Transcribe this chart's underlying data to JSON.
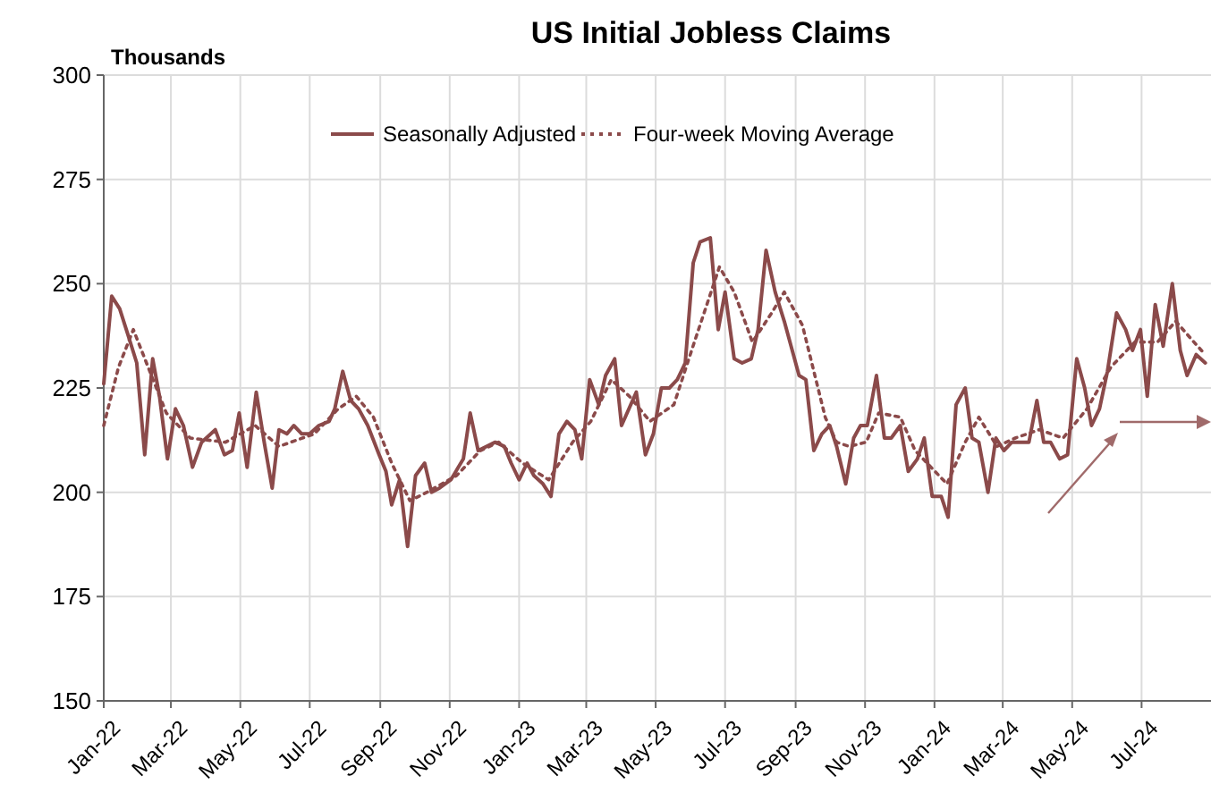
{
  "chart_data": {
    "type": "line",
    "title": "US Initial Jobless Claims",
    "ylabel": "Thousands",
    "legend": "top",
    "grid": true,
    "xlim": [
      "2022-01-01",
      "2024-08-31"
    ],
    "xticks": [
      {
        "value": "2022-01-01",
        "label": "Jan-22"
      },
      {
        "value": "2022-03-01",
        "label": "Mar-22"
      },
      {
        "value": "2022-05-01",
        "label": "May-22"
      },
      {
        "value": "2022-07-01",
        "label": "Jul-22"
      },
      {
        "value": "2022-09-01",
        "label": "Sep-22"
      },
      {
        "value": "2022-11-01",
        "label": "Nov-22"
      },
      {
        "value": "2023-01-01",
        "label": "Jan-23"
      },
      {
        "value": "2023-03-01",
        "label": "Mar-23"
      },
      {
        "value": "2023-05-01",
        "label": "May-23"
      },
      {
        "value": "2023-07-01",
        "label": "Jul-23"
      },
      {
        "value": "2023-09-01",
        "label": "Sep-23"
      },
      {
        "value": "2023-11-01",
        "label": "Nov-23"
      },
      {
        "value": "2024-01-01",
        "label": "Jan-24"
      },
      {
        "value": "2024-03-01",
        "label": "Mar-24"
      },
      {
        "value": "2024-05-01",
        "label": "May-24"
      },
      {
        "value": "2024-07-01",
        "label": "Jul-24"
      }
    ],
    "ylim": [
      150,
      300
    ],
    "yticks": [
      150,
      175,
      200,
      225,
      250,
      275,
      300
    ],
    "series": [
      {
        "name": "Seasonally Adjusted",
        "color": "#8b4a4a",
        "line_style": "solid",
        "x": [
          "2022-01-01",
          "2022-01-08",
          "2022-01-15",
          "2022-01-22",
          "2022-01-30",
          "2022-02-06",
          "2022-02-13",
          "2022-02-19",
          "2022-02-26",
          "2022-03-05",
          "2022-03-12",
          "2022-03-20",
          "2022-03-28",
          "2022-04-09",
          "2022-04-17",
          "2022-04-24",
          "2022-04-30",
          "2022-05-07",
          "2022-05-15",
          "2022-05-22",
          "2022-05-29",
          "2022-06-04",
          "2022-06-11",
          "2022-06-17",
          "2022-06-24",
          "2022-07-01",
          "2022-07-09",
          "2022-07-18",
          "2022-07-23",
          "2022-07-30",
          "2022-08-06",
          "2022-08-13",
          "2022-08-21",
          "2022-08-31",
          "2022-09-06",
          "2022-09-11",
          "2022-09-18",
          "2022-09-25",
          "2022-10-02",
          "2022-10-10",
          "2022-10-16",
          "2022-10-23",
          "2022-11-02",
          "2022-11-13",
          "2022-11-19",
          "2022-11-26",
          "2022-12-11",
          "2022-12-19",
          "2022-12-25",
          "2023-01-01",
          "2023-01-08",
          "2023-01-14",
          "2023-01-22",
          "2023-01-29",
          "2023-02-05",
          "2023-02-12",
          "2023-02-19",
          "2023-02-25",
          "2023-03-04",
          "2023-03-12",
          "2023-03-18",
          "2023-03-26",
          "2023-04-01",
          "2023-04-14",
          "2023-04-22",
          "2023-04-29",
          "2023-05-06",
          "2023-05-13",
          "2023-05-20",
          "2023-05-27",
          "2023-06-03",
          "2023-06-09",
          "2023-06-18",
          "2023-06-25",
          "2023-07-01",
          "2023-07-09",
          "2023-07-16",
          "2023-07-24",
          "2023-07-30",
          "2023-08-06",
          "2023-08-14",
          "2023-08-22",
          "2023-08-28",
          "2023-09-04",
          "2023-09-10",
          "2023-09-17",
          "2023-09-24",
          "2023-10-01",
          "2023-10-07",
          "2023-10-15",
          "2023-10-22",
          "2023-10-28",
          "2023-11-03",
          "2023-11-11",
          "2023-11-18",
          "2023-11-24",
          "2023-12-02",
          "2023-12-09",
          "2023-12-17",
          "2023-12-23",
          "2023-12-30",
          "2024-01-07",
          "2024-01-13",
          "2024-01-20",
          "2024-01-28",
          "2024-02-03",
          "2024-02-09",
          "2024-02-17",
          "2024-02-24",
          "2024-03-02",
          "2024-03-09",
          "2024-03-24",
          "2024-03-31",
          "2024-04-06",
          "2024-04-12",
          "2024-04-20",
          "2024-04-27",
          "2024-05-05",
          "2024-05-12",
          "2024-05-18",
          "2024-05-25",
          "2024-06-01",
          "2024-06-09",
          "2024-06-17",
          "2024-06-23",
          "2024-06-30",
          "2024-07-06",
          "2024-07-13",
          "2024-07-20",
          "2024-07-28",
          "2024-08-04",
          "2024-08-10",
          "2024-08-18",
          "2024-08-26"
        ],
        "values": [
          226,
          247,
          244,
          238,
          231,
          209,
          232,
          223,
          208,
          220,
          216,
          206,
          212,
          215,
          209,
          210,
          219,
          206,
          224,
          212,
          201,
          215,
          214,
          216,
          214,
          214,
          216,
          217,
          220,
          229,
          222,
          220,
          216,
          209,
          205,
          197,
          203,
          187,
          204,
          207,
          200,
          201,
          203,
          208,
          219,
          210,
          212,
          211,
          207,
          203,
          207,
          204,
          202,
          199,
          214,
          217,
          215,
          208,
          227,
          221,
          228,
          232,
          216,
          224,
          209,
          214,
          225,
          225,
          227,
          231,
          255,
          260,
          261,
          239,
          248,
          232,
          231,
          232,
          239,
          258,
          248,
          241,
          235,
          228,
          227,
          210,
          214,
          216,
          211,
          202,
          213,
          216,
          216,
          228,
          213,
          213,
          216,
          205,
          208,
          213,
          199,
          199,
          194,
          221,
          225,
          213,
          212,
          200,
          213,
          210,
          212,
          212,
          222,
          212,
          212,
          208,
          209,
          232,
          225,
          216,
          220,
          229,
          243,
          239,
          234,
          239,
          223,
          245,
          235,
          250,
          234,
          228,
          233,
          231
        ]
      },
      {
        "name": "Four-week Moving Average",
        "color": "#8b4a4a",
        "line_style": "dotted",
        "x": [
          "2022-01-01",
          "2022-01-14",
          "2022-01-27",
          "2022-02-09",
          "2022-02-25",
          "2022-03-18",
          "2022-04-18",
          "2022-05-14",
          "2022-06-04",
          "2022-07-05",
          "2022-07-26",
          "2022-08-11",
          "2022-08-26",
          "2022-09-11",
          "2022-09-27",
          "2022-10-12",
          "2022-11-07",
          "2022-11-28",
          "2022-12-14",
          "2023-01-04",
          "2023-01-27",
          "2023-02-17",
          "2023-03-05",
          "2023-03-23",
          "2023-04-08",
          "2023-04-26",
          "2023-05-17",
          "2023-06-04",
          "2023-06-26",
          "2023-07-09",
          "2023-07-25",
          "2023-08-11",
          "2023-08-22",
          "2023-09-07",
          "2023-09-27",
          "2023-10-07",
          "2023-10-18",
          "2023-11-02",
          "2023-11-13",
          "2023-12-02",
          "2023-12-15",
          "2024-01-12",
          "2024-01-28",
          "2024-02-09",
          "2024-02-25",
          "2024-03-12",
          "2024-04-02",
          "2024-04-23",
          "2024-05-14",
          "2024-06-04",
          "2024-06-25",
          "2024-07-15",
          "2024-07-31",
          "2024-08-16",
          "2024-08-26"
        ],
        "values": [
          216,
          230,
          239,
          230,
          219,
          213,
          212,
          216,
          211,
          214,
          220,
          223,
          218,
          207,
          198,
          200,
          204,
          210,
          212,
          207,
          203,
          212,
          217,
          227,
          223,
          217,
          221,
          236,
          254,
          248,
          236,
          243,
          248,
          240,
          218,
          212,
          211,
          212,
          219,
          218,
          210,
          202,
          212,
          218,
          211,
          213,
          215,
          213,
          220,
          230,
          236,
          236,
          241,
          236,
          233
        ]
      }
    ]
  }
}
